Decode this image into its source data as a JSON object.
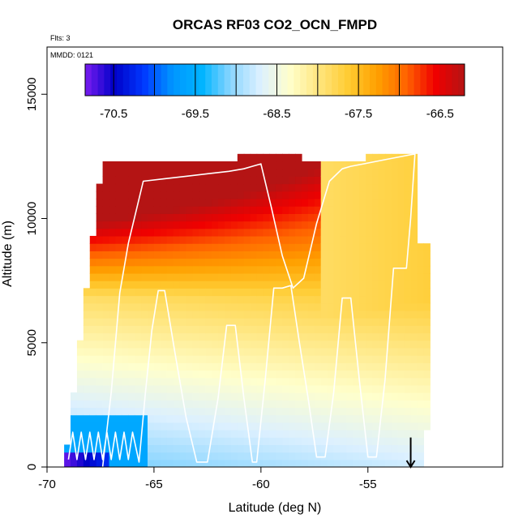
{
  "chart_data": {
    "type": "heatmap",
    "title": "ORCAS RF03 CO2_OCN_FMPD",
    "xlabel": "Latitude (deg N)",
    "ylabel": "Altitude (m)",
    "xlim": [
      -70,
      -48.7
    ],
    "ylim": [
      0,
      16900
    ],
    "x_ticks": [
      -70,
      -65,
      -60,
      -55
    ],
    "x_tick_labels": [
      "-70",
      "-65",
      "-60",
      "-55"
    ],
    "y_ticks": [
      0,
      5000,
      10000,
      15000
    ],
    "y_tick_labels": [
      "0",
      "5000",
      "10000",
      "15000"
    ],
    "annotations": {
      "flights": "Flts: 3",
      "mmdd": "MMDD: 0121"
    },
    "colorbar": {
      "range": [
        -70.85,
        -66.2
      ],
      "tick_values": [
        -70.5,
        -69.5,
        -68.5,
        -67.5,
        -66.5
      ],
      "tick_labels": [
        "-70.5",
        "-69.5",
        "-68.5",
        "-67.5",
        "-66.5"
      ],
      "colors": [
        "#7a1cf0",
        "#0000c8",
        "#0038ff",
        "#0096ff",
        "#00b4ff",
        "#8cd6ff",
        "#dcf0ff",
        "#ffffcc",
        "#ffe680",
        "#ffcc33",
        "#ffa000",
        "#ff6400",
        "#f00000",
        "#b41414"
      ]
    },
    "field": {
      "description": "modelled CO2_OCN_FMPD curtain by latitude and altitude",
      "lat_bounds": [
        -69.2,
        -52.1
      ],
      "alt_top": 12400,
      "bottom_left_values": {
        "lat": [
          -69.2,
          -65.5
        ],
        "alt": [
          0,
          2000
        ],
        "value": -69.6
      }
    },
    "flight_track": {
      "lat": [
        -69.0,
        -68.8,
        -68.6,
        -68.4,
        -68.2,
        -68.0,
        -67.8,
        -67.6,
        -67.4,
        -67.2,
        -67.0,
        -66.8,
        -66.6,
        -66.4,
        -66.2,
        -66.0,
        -65.7,
        -65.4,
        -65.1,
        -64.8,
        -64.5,
        -64.0,
        -63.5,
        -63.0,
        -62.5,
        -62.0,
        -61.6,
        -61.2,
        -60.8,
        -60.4,
        -60.2,
        -59.8,
        -59.4,
        -59.0,
        -58.6,
        -58.2,
        -57.8,
        -57.4,
        -57.0,
        -56.6,
        -56.2,
        -55.8,
        -55.4,
        -55.0,
        -54.6,
        -54.2,
        -53.8,
        -53.5,
        -53.2,
        -53.0,
        -52.8,
        -53.4,
        -54.0,
        -54.6,
        -55.2,
        -55.8,
        -56.2,
        -56.8,
        -57.4,
        -58.0,
        -58.5,
        -59.0,
        -59.5,
        -60.0,
        -60.4,
        -60.8,
        -61.5,
        -62.5,
        -63.5,
        -64.5,
        -65.5,
        -66.2,
        -66.6,
        -67.0,
        -67.4
      ],
      "alt": [
        300,
        1400,
        300,
        1400,
        300,
        1400,
        300,
        1400,
        300,
        1400,
        300,
        1400,
        300,
        1400,
        300,
        1400,
        200,
        3000,
        5500,
        7100,
        7100,
        4500,
        2000,
        200,
        200,
        2800,
        5700,
        5700,
        2800,
        200,
        200,
        3500,
        7200,
        7200,
        7300,
        5000,
        2800,
        400,
        400,
        3000,
        6800,
        6800,
        3500,
        400,
        400,
        3500,
        8000,
        8000,
        8000,
        10000,
        12600,
        12500,
        12400,
        12300,
        12200,
        12100,
        12000,
        11500,
        9800,
        7600,
        7200,
        8500,
        10400,
        12200,
        12100,
        12000,
        11900,
        11800,
        11700,
        11600,
        11500,
        9000,
        7000,
        3000,
        0
      ]
    },
    "arrow": {
      "lat": -53.0,
      "alt_top": 600,
      "alt_bottom": 0
    }
  }
}
